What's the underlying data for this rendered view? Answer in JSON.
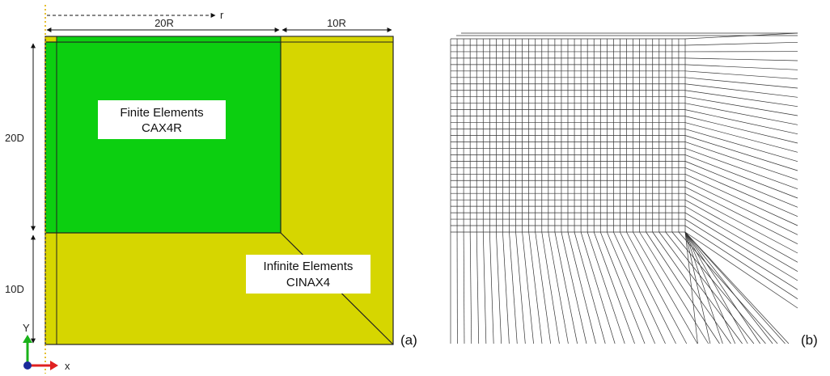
{
  "panel_a": {
    "panel_label": "(a)",
    "colors": {
      "finite_region": "#0ccf10",
      "infinite_region": "#d6d600",
      "edge": "#222222",
      "axis_line": "#e0b000"
    },
    "finite_label": {
      "line1": "Finite Elements",
      "line2": "CAX4R"
    },
    "infinite_label": {
      "line1": "Infinite Elements",
      "line2": "CINAX4"
    },
    "dimensions": {
      "r_axis": "r",
      "width_finite": "20R",
      "width_infinite": "10R",
      "depth_finite": "20D",
      "depth_infinite": "10D"
    },
    "axes": {
      "x_label": "x",
      "y_label": "Y",
      "x_color": "#e02020",
      "y_color": "#19b219",
      "origin_color": "#1a2a9a"
    }
  },
  "panel_b": {
    "panel_label": "(b)",
    "colors": {
      "mesh_line": "#333333"
    }
  }
}
